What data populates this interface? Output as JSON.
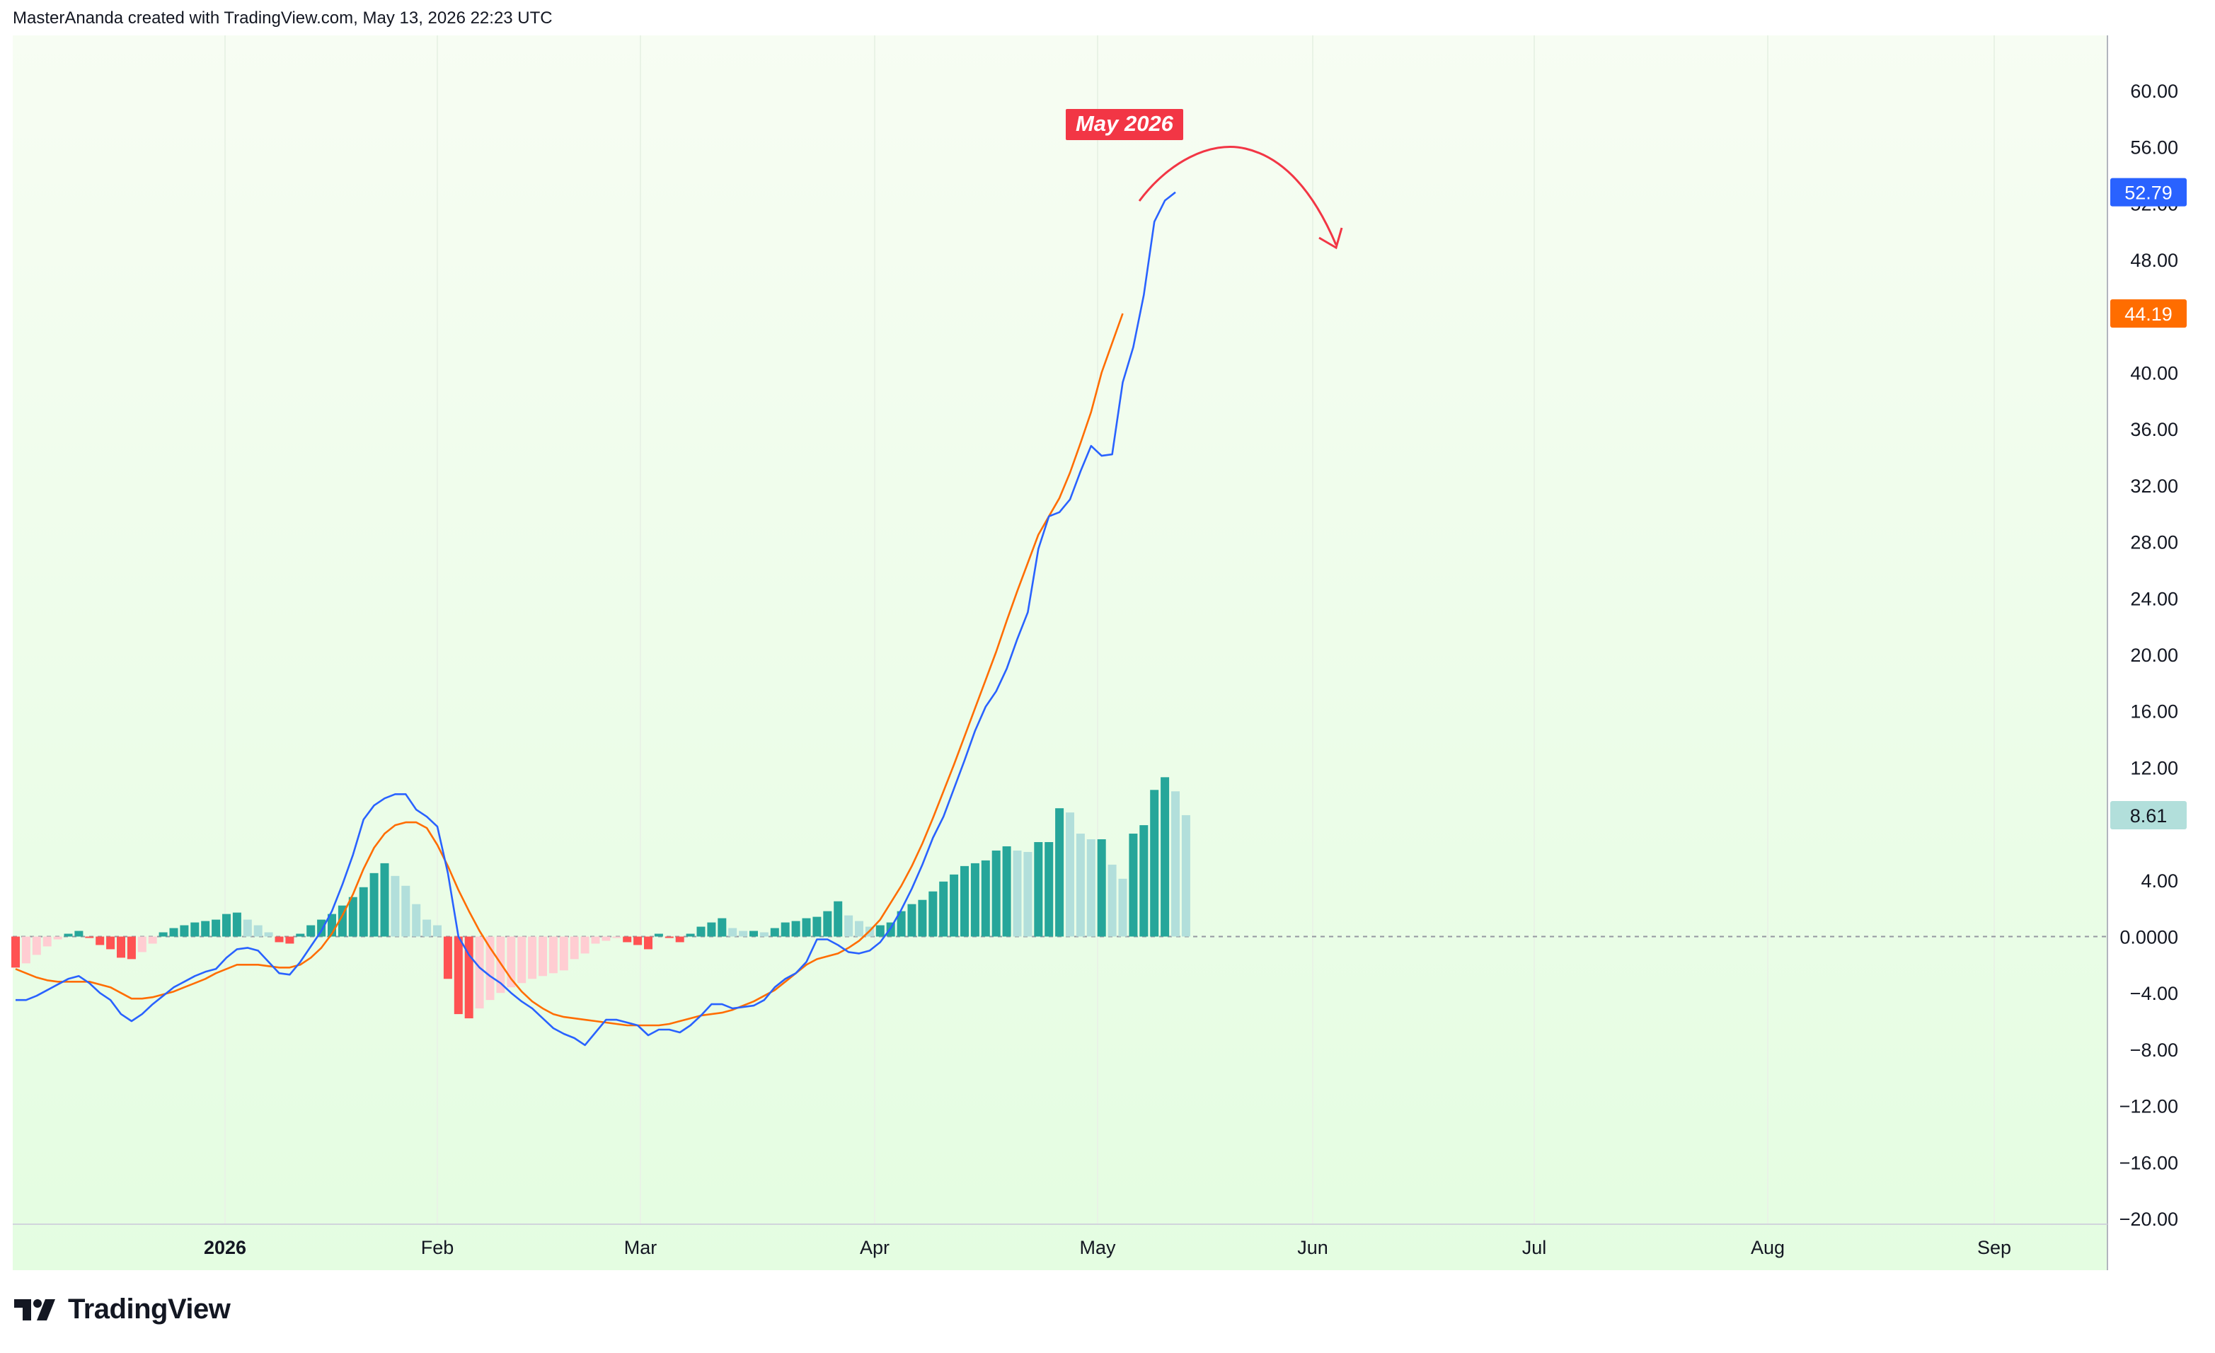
{
  "header": {
    "attribution": "MasterAnanda created with TradingView.com, May 13, 2026 22:23 UTC"
  },
  "footer": {
    "brand": "TradingView"
  },
  "annotation": {
    "label": "May 2026",
    "color": "#f23645"
  },
  "colors": {
    "macd_line": "#2962ff",
    "signal_line": "#ff6d00",
    "hist_up_strong": "#26a69a",
    "hist_up_weak": "#b2dfdb",
    "hist_down_strong": "#ff5252",
    "hist_down_weak": "#ffcdd2",
    "bg_top": "#f7fdf3",
    "bg_bottom": "#e4fde1"
  },
  "chart_data": {
    "type": "line",
    "title": "",
    "x_ticks": [
      "2026",
      "Feb",
      "Mar",
      "Apr",
      "May",
      "Jun",
      "Jul",
      "Aug",
      "Sep"
    ],
    "y_ticks": [
      "60.00",
      "56.00",
      "52.00",
      "48.00",
      "40.00",
      "36.00",
      "32.00",
      "28.00",
      "24.00",
      "20.00",
      "16.00",
      "12.00",
      "4.00",
      "0.0000",
      "−4.00",
      "−8.00",
      "−12.00",
      "−16.00",
      "−20.00"
    ],
    "ylim": [
      -20,
      63
    ],
    "zero_line": true,
    "last_values": [
      {
        "series": "macd",
        "label": "52.79",
        "value": 52.79,
        "color": "#2962ff"
      },
      {
        "series": "signal",
        "label": "44.19",
        "value": 44.19,
        "color": "#ff6d00"
      },
      {
        "series": "histogram",
        "label": "8.61",
        "value": 8.61,
        "color": "#b2dfdb"
      }
    ],
    "series": [
      {
        "key": "macd",
        "values": [
          -4.5,
          -4.5,
          -4.2,
          -3.8,
          -3.4,
          -3.0,
          -2.8,
          -3.3,
          -4.0,
          -4.5,
          -5.5,
          -6.0,
          -5.5,
          -4.8,
          -4.2,
          -3.6,
          -3.2,
          -2.8,
          -2.5,
          -2.3,
          -1.5,
          -0.9,
          -0.8,
          -1.0,
          -1.8,
          -2.6,
          -2.7,
          -1.8,
          -0.7,
          0.4,
          1.8,
          3.7,
          5.8,
          8.3,
          9.3,
          9.8,
          10.1,
          10.1,
          9.0,
          8.5,
          7.8,
          4.5,
          0.0,
          -1.3,
          -2.2,
          -2.8,
          -3.3,
          -4.0,
          -4.6,
          -5.1,
          -5.8,
          -6.5,
          -6.9,
          -7.2,
          -7.7,
          -6.8,
          -5.9,
          -5.9,
          -6.1,
          -6.3,
          -7.0,
          -6.6,
          -6.6,
          -6.8,
          -6.3,
          -5.6,
          -4.8,
          -4.8,
          -5.1,
          -5.0,
          -4.9,
          -4.5,
          -3.6,
          -3.0,
          -2.6,
          -1.8,
          -0.2,
          -0.2,
          -0.6,
          -1.1,
          -1.2,
          -1.0,
          -0.4,
          0.6,
          1.9,
          3.4,
          5.1,
          7.0,
          8.5,
          10.5,
          12.5,
          14.6,
          16.3,
          17.4,
          19.0,
          21.1,
          23.0,
          27.5,
          29.8,
          30.1,
          31.0,
          33.0,
          34.8,
          34.1,
          34.2,
          39.3,
          41.8,
          45.5,
          50.7,
          52.2,
          52.79
        ]
      },
      {
        "key": "signal",
        "values": [
          -2.3,
          -2.6,
          -2.9,
          -3.1,
          -3.2,
          -3.2,
          -3.2,
          -3.2,
          -3.4,
          -3.6,
          -4.0,
          -4.4,
          -4.4,
          -4.3,
          -4.1,
          -3.9,
          -3.6,
          -3.3,
          -3.0,
          -2.6,
          -2.3,
          -2.0,
          -2.0,
          -2.0,
          -2.1,
          -2.2,
          -2.2,
          -2.0,
          -1.5,
          -0.8,
          0.2,
          1.5,
          3.0,
          4.8,
          6.3,
          7.3,
          7.9,
          8.1,
          8.1,
          7.7,
          6.5,
          5.0,
          3.3,
          1.8,
          0.4,
          -0.8,
          -1.9,
          -3.0,
          -3.9,
          -4.6,
          -5.1,
          -5.5,
          -5.7,
          -5.8,
          -5.9,
          -6.0,
          -6.1,
          -6.2,
          -6.3,
          -6.3,
          -6.3,
          -6.3,
          -6.2,
          -6.0,
          -5.8,
          -5.6,
          -5.5,
          -5.4,
          -5.2,
          -4.9,
          -4.6,
          -4.2,
          -3.8,
          -3.2,
          -2.6,
          -2.0,
          -1.6,
          -1.4,
          -1.2,
          -0.8,
          -0.3,
          0.4,
          1.2,
          2.4,
          3.6,
          5.0,
          6.6,
          8.4,
          10.3,
          12.2,
          14.2,
          16.2,
          18.2,
          20.2,
          22.4,
          24.5,
          26.5,
          28.5,
          29.8,
          31.1,
          32.9,
          35.0,
          37.2,
          40.0,
          42.1,
          44.19
        ]
      },
      {
        "key": "histogram",
        "values": [
          -2.2,
          -1.9,
          -1.3,
          -0.7,
          -0.2,
          0.2,
          0.4,
          -0.1,
          -0.6,
          -0.9,
          -1.5,
          -1.6,
          -1.1,
          -0.5,
          0.3,
          0.6,
          0.8,
          1.0,
          1.1,
          1.2,
          1.6,
          1.7,
          1.2,
          0.8,
          0.3,
          -0.4,
          -0.5,
          0.2,
          0.8,
          1.2,
          1.6,
          2.2,
          2.8,
          3.5,
          4.5,
          5.2,
          4.3,
          3.6,
          2.3,
          1.2,
          0.8,
          -3.0,
          -5.5,
          -5.8,
          -5.1,
          -4.5,
          -4.0,
          -3.6,
          -3.3,
          -3.0,
          -2.8,
          -2.6,
          -2.4,
          -1.6,
          -1.2,
          -0.5,
          -0.3,
          -0.1,
          -0.4,
          -0.6,
          -0.9,
          0.2,
          -0.1,
          -0.4,
          0.2,
          0.7,
          1.0,
          1.3,
          0.6,
          0.4,
          0.4,
          0.3,
          0.6,
          1.0,
          1.1,
          1.3,
          1.4,
          1.8,
          2.5,
          1.5,
          1.1,
          0.7,
          0.8,
          1.0,
          1.8,
          2.3,
          2.6,
          3.2,
          3.9,
          4.4,
          5.0,
          5.2,
          5.4,
          6.1,
          6.4,
          6.1,
          6.0,
          6.7,
          6.7,
          9.1,
          8.8,
          7.3,
          6.9,
          6.9,
          5.1,
          4.1,
          7.3,
          7.9,
          10.4,
          11.3,
          10.3,
          8.61
        ]
      }
    ]
  }
}
